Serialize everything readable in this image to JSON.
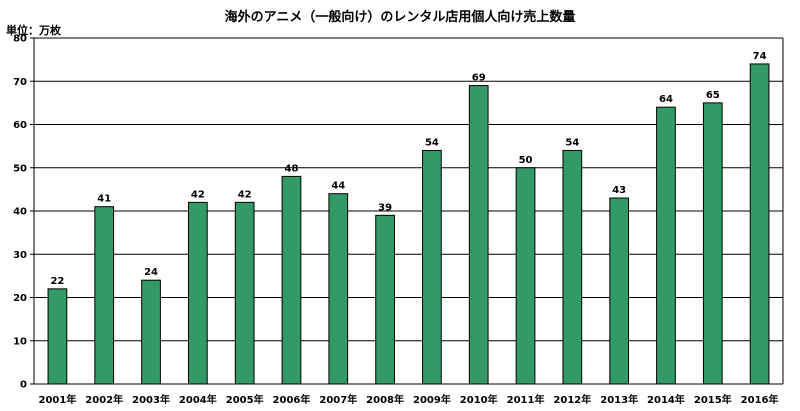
{
  "chart_data": {
    "type": "bar",
    "title": "海外のアニメ（一般向け）のレンタル店用個人向け売上数量",
    "unit_label": "単位：万枚",
    "categories": [
      "2001年",
      "2002年",
      "2003年",
      "2004年",
      "2005年",
      "2006年",
      "2007年",
      "2008年",
      "2009年",
      "2010年",
      "2011年",
      "2012年",
      "2013年",
      "2014年",
      "2015年",
      "2016年"
    ],
    "values": [
      22,
      41,
      24,
      42,
      42,
      48,
      44,
      39,
      54,
      69,
      50,
      54,
      43,
      64,
      65,
      74
    ],
    "value_labels": [
      "22",
      "41",
      "24",
      "42",
      "42",
      "48",
      "44",
      "39",
      "54",
      "69",
      "50",
      "54",
      "43",
      "64",
      "65",
      "74"
    ],
    "yticks": [
      0,
      10,
      20,
      30,
      40,
      50,
      60,
      70,
      80
    ],
    "ylim": [
      0,
      80
    ],
    "grid": true,
    "legend": "none",
    "colors": {
      "bar_fill": "#339966",
      "bar_stroke": "#000000",
      "grid": "#000000"
    }
  }
}
